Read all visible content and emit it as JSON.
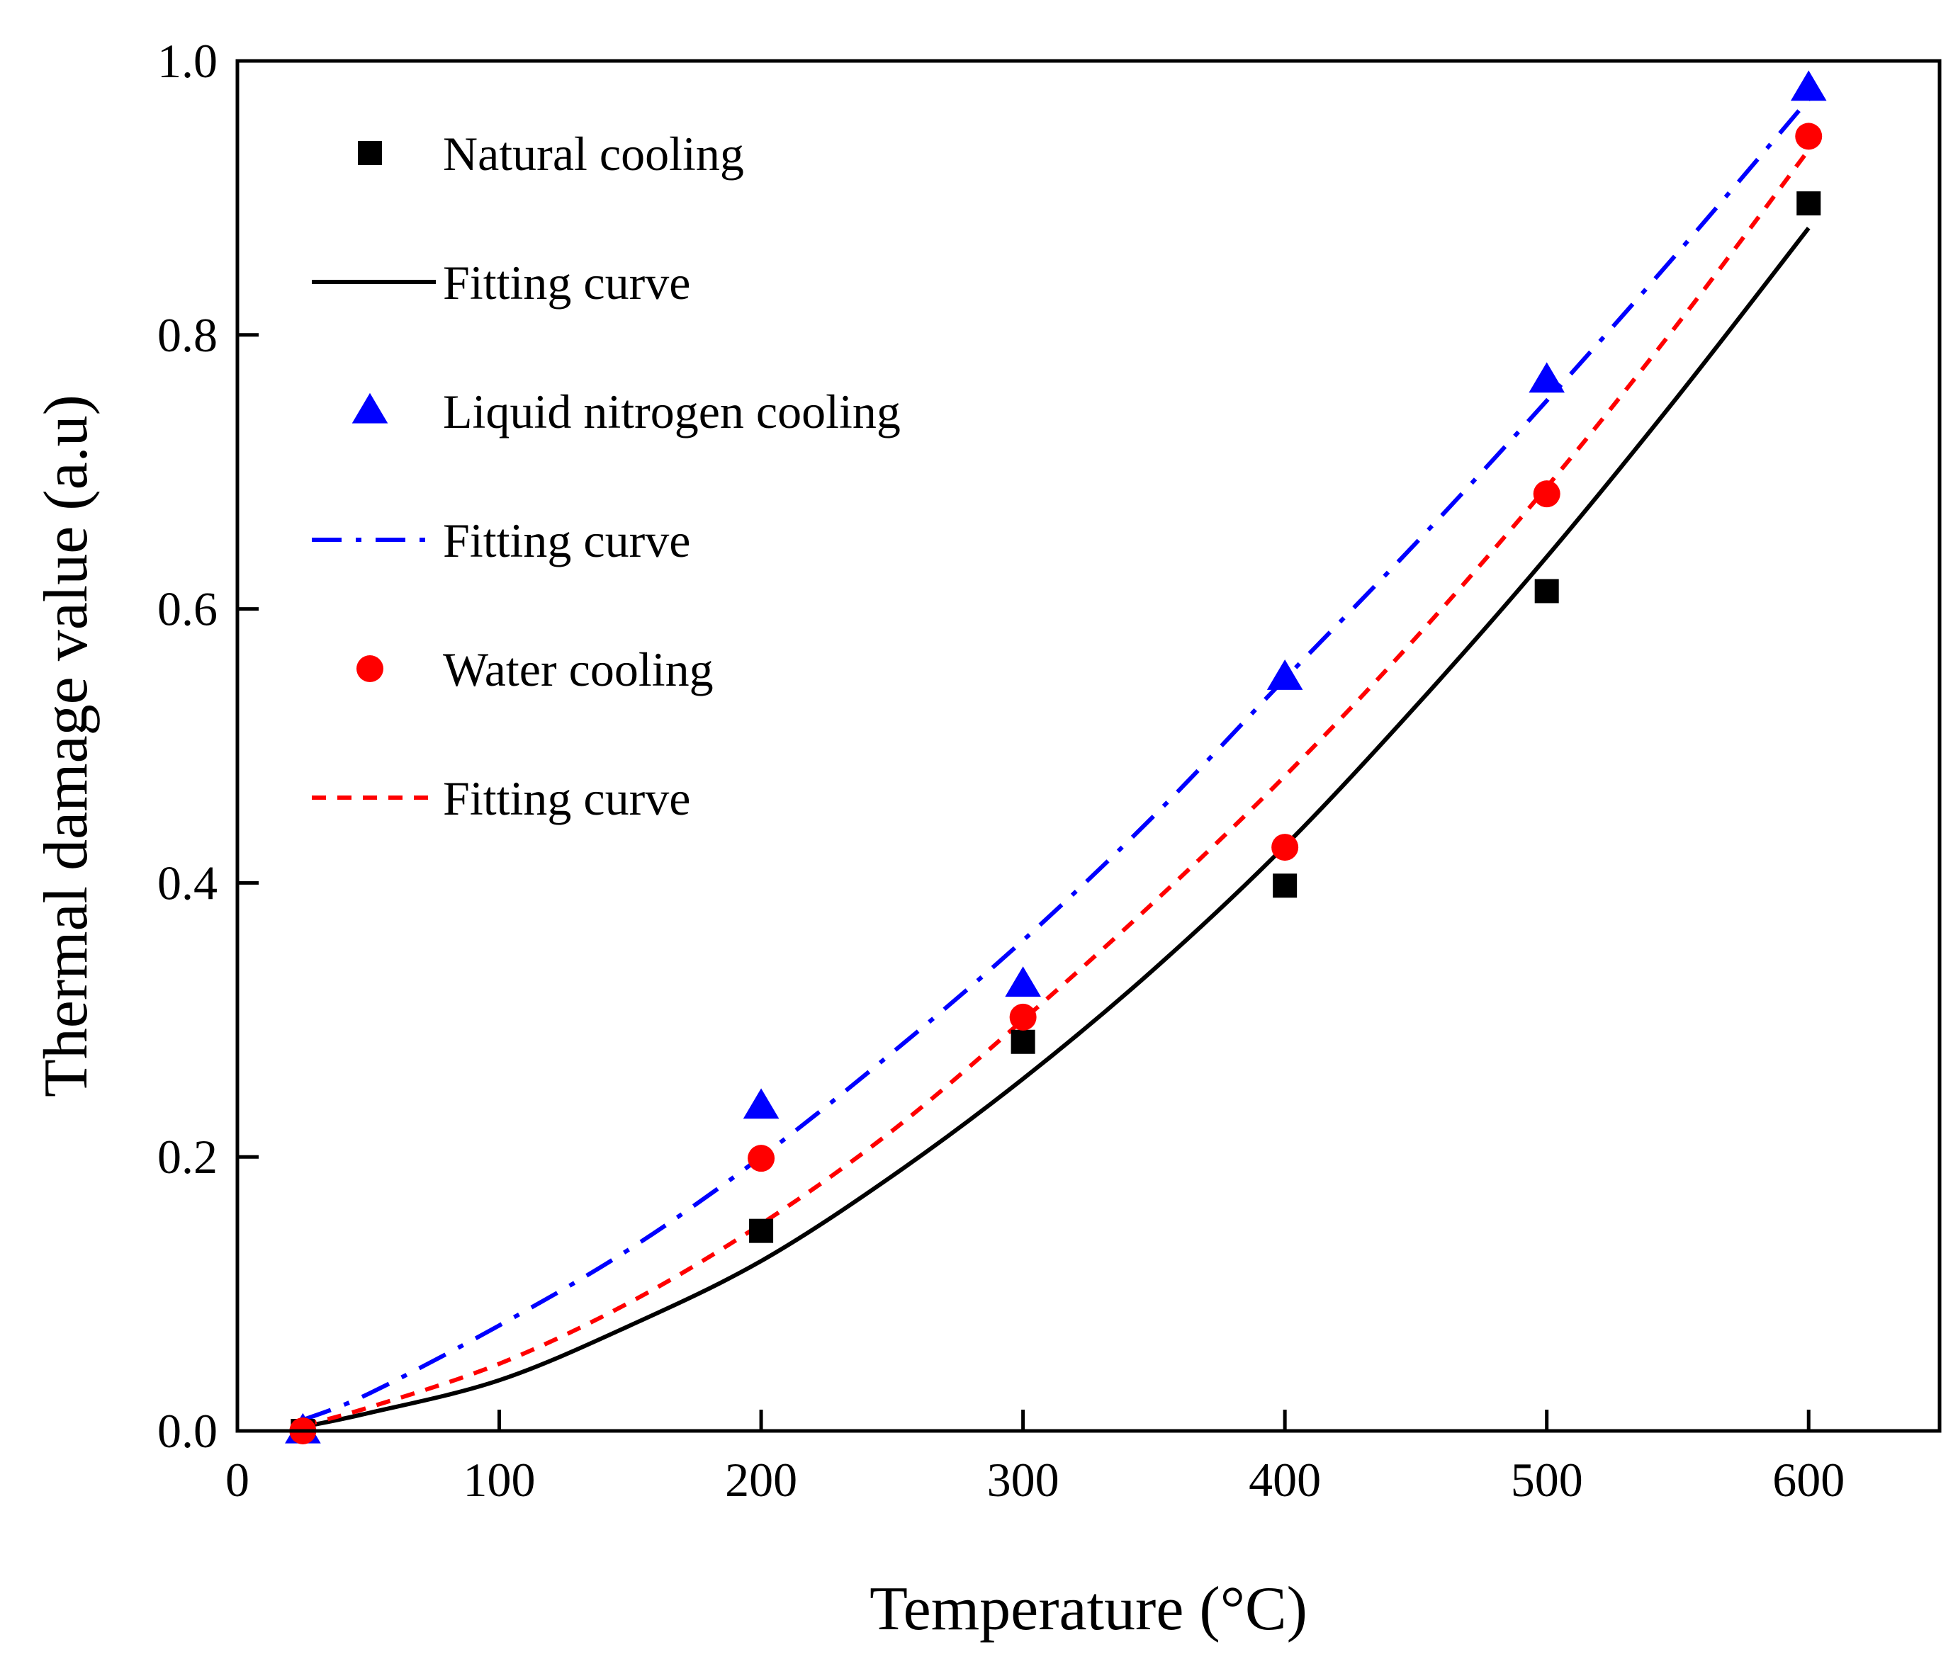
{
  "chart_data": {
    "type": "scatter",
    "title": "",
    "xlabel": "Temperature (°C)",
    "ylabel": "Thermal damage value (a.u)",
    "xlim": [
      0,
      650
    ],
    "ylim": [
      0,
      1.0
    ],
    "xticks": [
      0,
      100,
      200,
      300,
      400,
      500,
      600
    ],
    "xtick_labels": [
      "0",
      "100",
      "200",
      "300",
      "400",
      "500",
      "600"
    ],
    "yticks": [
      0,
      0.2,
      0.4,
      0.6,
      0.8,
      1.0
    ],
    "ytick_labels": [
      "0.0",
      "0.2",
      "0.4",
      "0.6",
      "0.8",
      "1.0"
    ],
    "legend_position": "top-left",
    "series": [
      {
        "name": "Natural cooling",
        "kind": "points",
        "marker": "square",
        "color": "#000000",
        "x": [
          25,
          200,
          300,
          400,
          500,
          600
        ],
        "y": [
          0.0,
          0.146,
          0.284,
          0.398,
          0.613,
          0.896
        ]
      },
      {
        "name": "Fitting curve",
        "kind": "curve",
        "dash": "solid",
        "color": "#000000",
        "x": [
          25,
          50,
          100,
          150,
          200,
          250,
          300,
          350,
          400,
          450,
          500,
          550,
          600
        ],
        "y": [
          0.003,
          0.013,
          0.037,
          0.077,
          0.124,
          0.186,
          0.257,
          0.337,
          0.427,
          0.529,
          0.638,
          0.755,
          0.878
        ]
      },
      {
        "name": "Liquid nitrogen cooling",
        "kind": "points",
        "marker": "triangle",
        "color": "#0000ff",
        "x": [
          25,
          200,
          300,
          400,
          500,
          600
        ],
        "y": [
          0.0,
          0.237,
          0.326,
          0.55,
          0.767,
          0.98
        ]
      },
      {
        "name": "Fitting curve",
        "kind": "curve",
        "dash": "dashdot",
        "color": "#0000ff",
        "x": [
          25,
          50,
          100,
          150,
          200,
          250,
          300,
          350,
          400,
          450,
          500,
          550,
          600
        ],
        "y": [
          0.008,
          0.027,
          0.077,
          0.133,
          0.2,
          0.276,
          0.358,
          0.449,
          0.549,
          0.648,
          0.752,
          0.86,
          0.972
        ]
      },
      {
        "name": "Water cooling",
        "kind": "points",
        "marker": "circle",
        "color": "#ff0000",
        "x": [
          25,
          200,
          300,
          400,
          500,
          600
        ],
        "y": [
          0.0,
          0.199,
          0.302,
          0.426,
          0.684,
          0.945
        ]
      },
      {
        "name": "Fitting curve",
        "kind": "curve",
        "dash": "dashed",
        "color": "#ff0000",
        "x": [
          25,
          50,
          100,
          150,
          200,
          250,
          300,
          350,
          400,
          450,
          500,
          550,
          600
        ],
        "y": [
          0.004,
          0.017,
          0.049,
          0.094,
          0.151,
          0.219,
          0.3,
          0.386,
          0.478,
          0.579,
          0.689,
          0.808,
          0.935
        ]
      }
    ]
  }
}
